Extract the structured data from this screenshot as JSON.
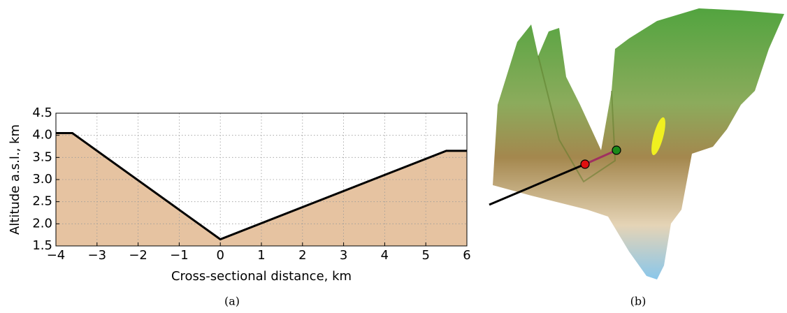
{
  "chart_data": {
    "type": "area",
    "xlabel": "Cross-sectional distance, km",
    "ylabel": "Altitude a.s.l., km",
    "x": [
      -4,
      -3.6,
      0,
      5.5,
      6
    ],
    "values": [
      4.05,
      4.05,
      1.65,
      3.65,
      3.65
    ],
    "color": "#e6c3a1",
    "line_color": "#000000",
    "xlim": [
      -4,
      6
    ],
    "xticks": [
      {
        "value": -4,
        "label": "−4"
      },
      {
        "value": -3,
        "label": "−3"
      },
      {
        "value": -2,
        "label": "−2"
      },
      {
        "value": -1,
        "label": "−1"
      },
      0,
      1,
      2,
      3,
      4,
      5,
      6
    ],
    "ylim": [
      1.5,
      4.5
    ],
    "yticks": [
      1.5,
      {
        "value": 2,
        "label": "2.0"
      },
      2.5,
      {
        "value": 3,
        "label": "3.0"
      },
      3.5,
      {
        "value": 4,
        "label": "4.0"
      },
      4.5
    ],
    "grid": true
  },
  "captions": [
    "(a)",
    "(b)"
  ]
}
